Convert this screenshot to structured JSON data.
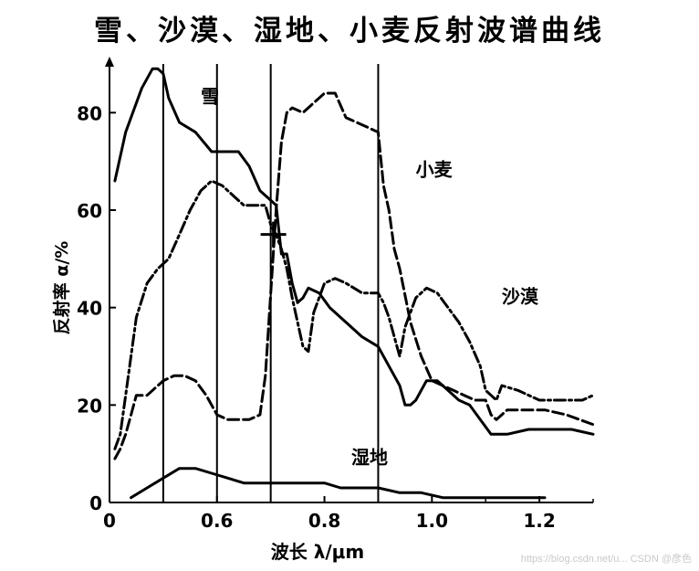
{
  "chart_data": {
    "type": "line",
    "title": "雪、沙漠、湿地、小麦反射波谱曲线",
    "xlabel": "波长 λ/μm",
    "ylabel": "反射率 α/%",
    "xlim": [
      0.4,
      1.3
    ],
    "ylim": [
      0,
      90
    ],
    "xticks": [
      0.4,
      0.6,
      0.8,
      1.0,
      1.2
    ],
    "xtick_labels": [
      "0",
      "0.6",
      "0.8",
      "1.0",
      "1.2"
    ],
    "yticks": [
      0,
      20,
      40,
      60,
      80
    ],
    "ytick_labels": [
      "0",
      "20",
      "40",
      "60",
      "80"
    ],
    "vlines": [
      0.5,
      0.6,
      0.7,
      0.9
    ],
    "grid": false,
    "series": [
      {
        "name": "雪",
        "style": "solid",
        "x": [
          0.41,
          0.43,
          0.46,
          0.48,
          0.49,
          0.5,
          0.51,
          0.53,
          0.56,
          0.59,
          0.61,
          0.64,
          0.66,
          0.68,
          0.7,
          0.71,
          0.72,
          0.73,
          0.74,
          0.75,
          0.76,
          0.77,
          0.79,
          0.81,
          0.84,
          0.87,
          0.9,
          0.92,
          0.94,
          0.95,
          0.96,
          0.97,
          0.99,
          1.01,
          1.03,
          1.05,
          1.07,
          1.09,
          1.11,
          1.14,
          1.18,
          1.22,
          1.26,
          1.3
        ],
        "y": [
          66,
          76,
          85,
          89,
          89,
          88,
          83,
          78,
          76,
          72,
          72,
          72,
          69,
          64,
          62,
          61,
          51,
          51,
          45,
          41,
          42,
          44,
          43,
          40,
          37,
          34,
          32,
          28,
          24,
          20,
          20,
          21,
          25,
          25,
          23,
          21,
          20,
          17,
          14,
          14,
          15,
          15,
          15,
          14
        ]
      },
      {
        "name": "小麦",
        "style": "dashed",
        "x": [
          0.41,
          0.42,
          0.43,
          0.44,
          0.45,
          0.47,
          0.49,
          0.5,
          0.52,
          0.54,
          0.56,
          0.58,
          0.6,
          0.62,
          0.64,
          0.66,
          0.68,
          0.69,
          0.7,
          0.71,
          0.72,
          0.73,
          0.74,
          0.76,
          0.77,
          0.79,
          0.8,
          0.82,
          0.84,
          0.86,
          0.88,
          0.9,
          0.91,
          0.92,
          0.93,
          0.94,
          0.96,
          0.98,
          1.0,
          1.02,
          1.04,
          1.06,
          1.08,
          1.1,
          1.11,
          1.12,
          1.14,
          1.17,
          1.21,
          1.25,
          1.3
        ],
        "y": [
          9,
          11,
          14,
          18,
          22,
          22,
          24,
          25,
          26,
          26,
          25,
          22,
          18,
          17,
          17,
          17,
          18,
          26,
          43,
          60,
          74,
          80,
          81,
          80,
          81,
          83,
          84,
          84,
          79,
          78,
          77,
          76,
          65,
          60,
          52,
          48,
          37,
          30,
          25,
          24,
          23,
          22,
          21,
          21,
          18,
          17,
          19,
          19,
          19,
          18,
          16
        ]
      },
      {
        "name": "沙漠",
        "style": "dashdot",
        "x": [
          0.41,
          0.42,
          0.43,
          0.45,
          0.47,
          0.49,
          0.51,
          0.53,
          0.55,
          0.57,
          0.59,
          0.61,
          0.63,
          0.65,
          0.67,
          0.69,
          0.7,
          0.71,
          0.72,
          0.73,
          0.74,
          0.75,
          0.76,
          0.77,
          0.78,
          0.8,
          0.82,
          0.84,
          0.87,
          0.9,
          0.91,
          0.92,
          0.93,
          0.94,
          0.95,
          0.97,
          0.99,
          1.01,
          1.03,
          1.05,
          1.07,
          1.09,
          1.1,
          1.11,
          1.12,
          1.13,
          1.16,
          1.2,
          1.24,
          1.28,
          1.3
        ],
        "y": [
          11,
          14,
          22,
          38,
          45,
          48,
          50,
          55,
          60,
          64,
          66,
          65,
          63,
          61,
          61,
          61,
          57,
          55,
          52,
          48,
          42,
          37,
          32,
          31,
          39,
          45,
          46,
          45,
          43,
          43,
          41,
          38,
          34,
          30,
          36,
          42,
          44,
          43,
          40,
          37,
          33,
          28,
          23,
          22,
          21,
          24,
          23,
          21,
          21,
          21,
          22
        ]
      },
      {
        "name": "湿地",
        "style": "solid",
        "x": [
          0.44,
          0.47,
          0.5,
          0.53,
          0.56,
          0.59,
          0.62,
          0.65,
          0.68,
          0.71,
          0.74,
          0.77,
          0.8,
          0.83,
          0.86,
          0.9,
          0.94,
          0.98,
          1.02,
          1.06,
          1.1,
          1.14,
          1.18,
          1.21
        ],
        "y": [
          1,
          3,
          5,
          7,
          7,
          6,
          5,
          4,
          4,
          4,
          4,
          4,
          4,
          3,
          3,
          3,
          2,
          2,
          1,
          1,
          1,
          1,
          1,
          1
        ]
      }
    ],
    "series_labels": [
      {
        "text": "雪",
        "x": 0.57,
        "y": 82
      },
      {
        "text": "小麦",
        "x": 0.97,
        "y": 67
      },
      {
        "text": "沙漠",
        "x": 1.13,
        "y": 41
      },
      {
        "text": "湿地",
        "x": 0.85,
        "y": 8
      }
    ],
    "marker": {
      "x": 0.705,
      "y": 55
    }
  },
  "watermark": "https://blog.csdn.net/u... CSDN @彦色"
}
